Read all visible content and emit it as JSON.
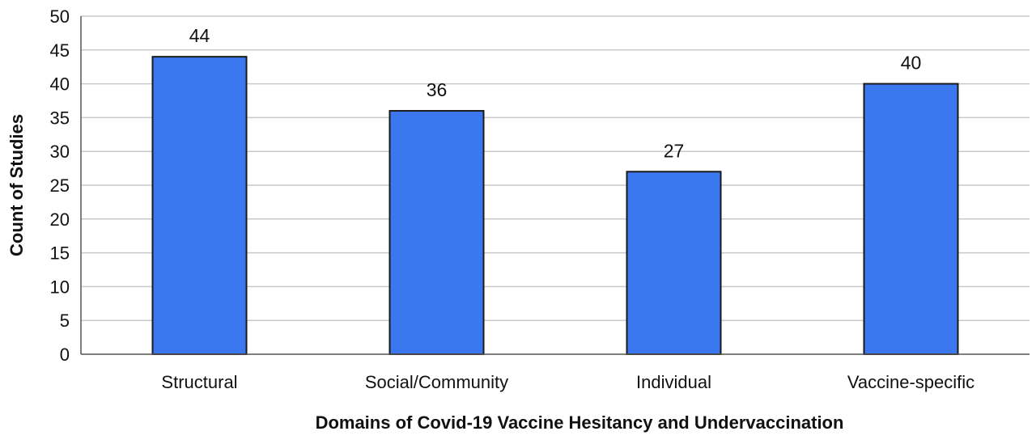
{
  "chart_data": {
    "type": "bar",
    "categories": [
      "Structural",
      "Social/Community",
      "Individual",
      "Vaccine-specific"
    ],
    "values": [
      44,
      36,
      27,
      40
    ],
    "xlabel": "Domains of Covid-19 Vaccine Hesitancy and Undervaccination",
    "ylabel": "Count of Studies",
    "ylim": [
      0,
      50
    ],
    "yticks": [
      0,
      5,
      10,
      15,
      20,
      25,
      30,
      35,
      40,
      45,
      50
    ],
    "grid": true,
    "legend": "none",
    "data_labels": true,
    "bar_color": "#3b78f0",
    "grid_color": "#c9c9c9"
  }
}
